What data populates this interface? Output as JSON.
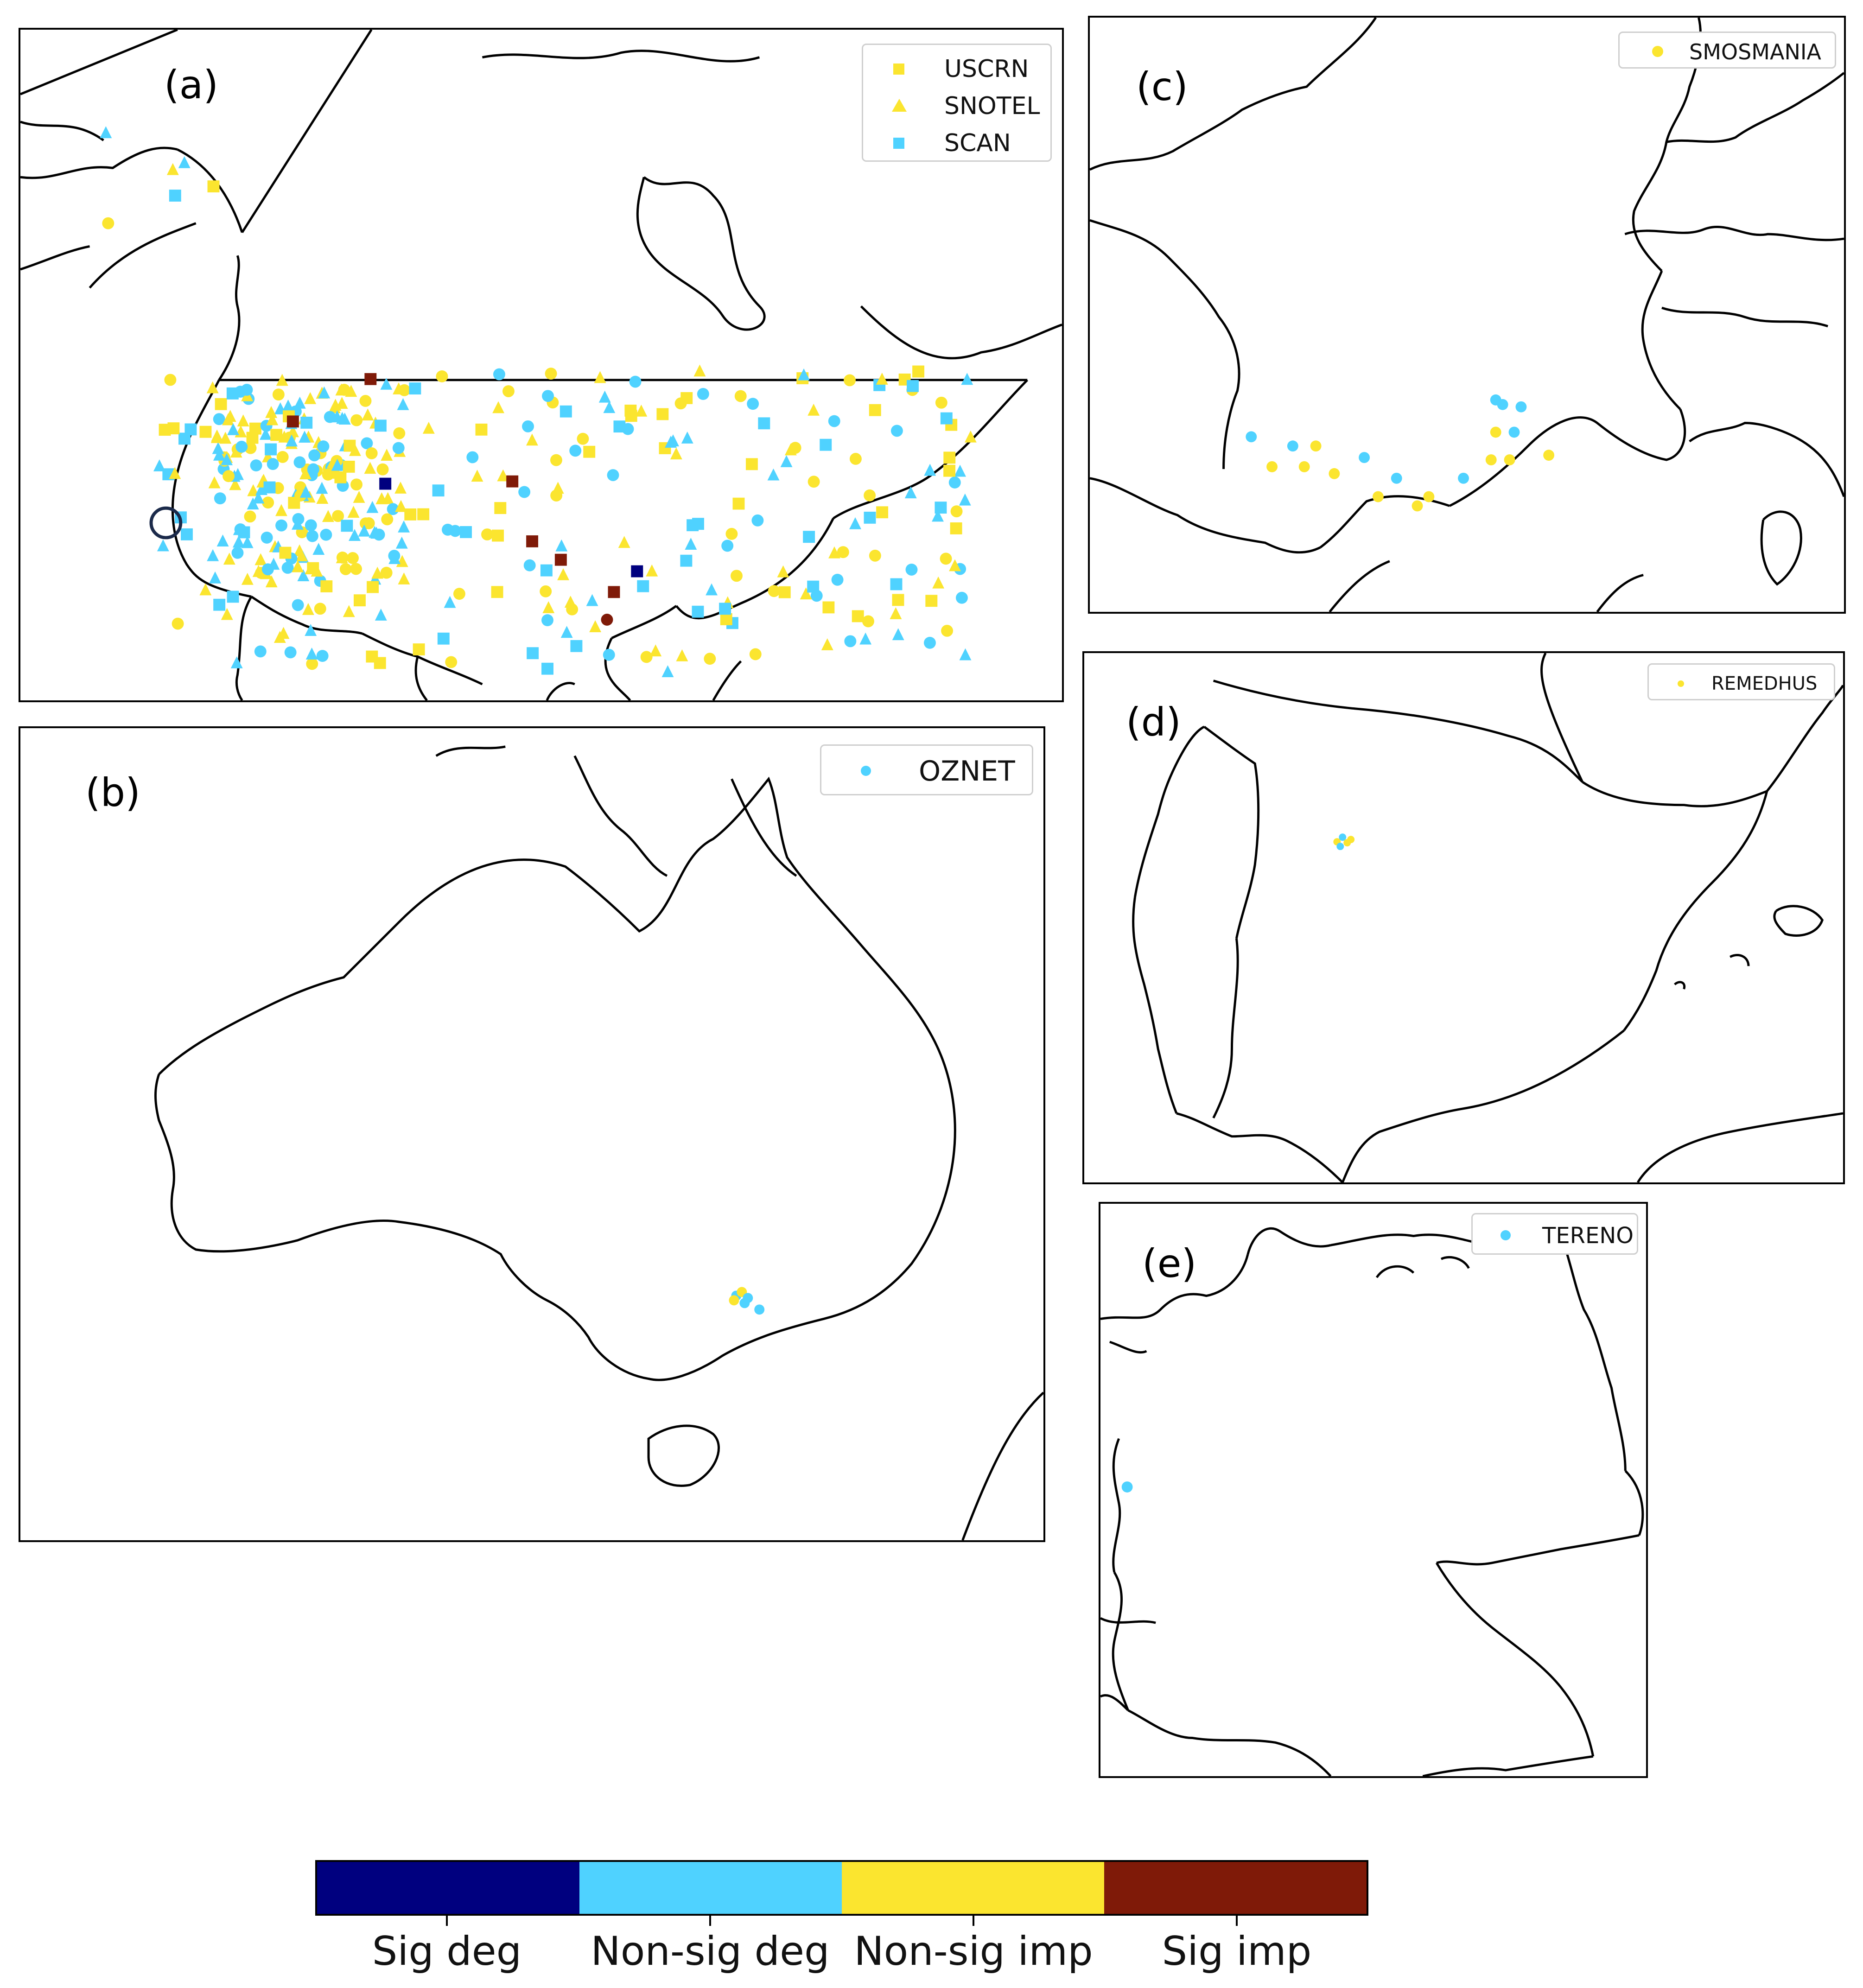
{
  "colors": {
    "sig_deg": "#00007f",
    "nonsig_deg": "#4fd2ff",
    "nonsig_imp": "#fbe52f",
    "sig_imp": "#7f1a08"
  },
  "panels": {
    "a": {
      "label": "(a)",
      "legend": [
        {
          "symbol": "square",
          "color": "#fbe52f",
          "text": "USCRN"
        },
        {
          "symbol": "triangle",
          "color": "#fbe52f",
          "text": "SNOTEL"
        },
        {
          "symbol": "square",
          "color": "#4fd2ff",
          "text": "SCAN"
        }
      ]
    },
    "b": {
      "label": "(b)",
      "legend": [
        {
          "symbol": "circle",
          "color": "#4fd2ff",
          "text": "OZNET"
        }
      ]
    },
    "c": {
      "label": "(c)",
      "legend": [
        {
          "symbol": "circle",
          "color": "#fbe52f",
          "text": "SMOSMANIA"
        }
      ]
    },
    "d": {
      "label": "(d)",
      "legend": [
        {
          "symbol": "circle",
          "color": "#fbe52f",
          "text": "REMEDHUS"
        }
      ]
    },
    "e": {
      "label": "(e)",
      "legend": [
        {
          "symbol": "circle",
          "color": "#4fd2ff",
          "text": "TERENO"
        }
      ]
    }
  },
  "colorbar": {
    "labels": [
      "Sig deg",
      "Non-sig deg",
      "Non-sig imp",
      "Sig imp"
    ],
    "colors": [
      "#00007f",
      "#4fd2ff",
      "#fbe52f",
      "#7f1a08"
    ]
  }
}
